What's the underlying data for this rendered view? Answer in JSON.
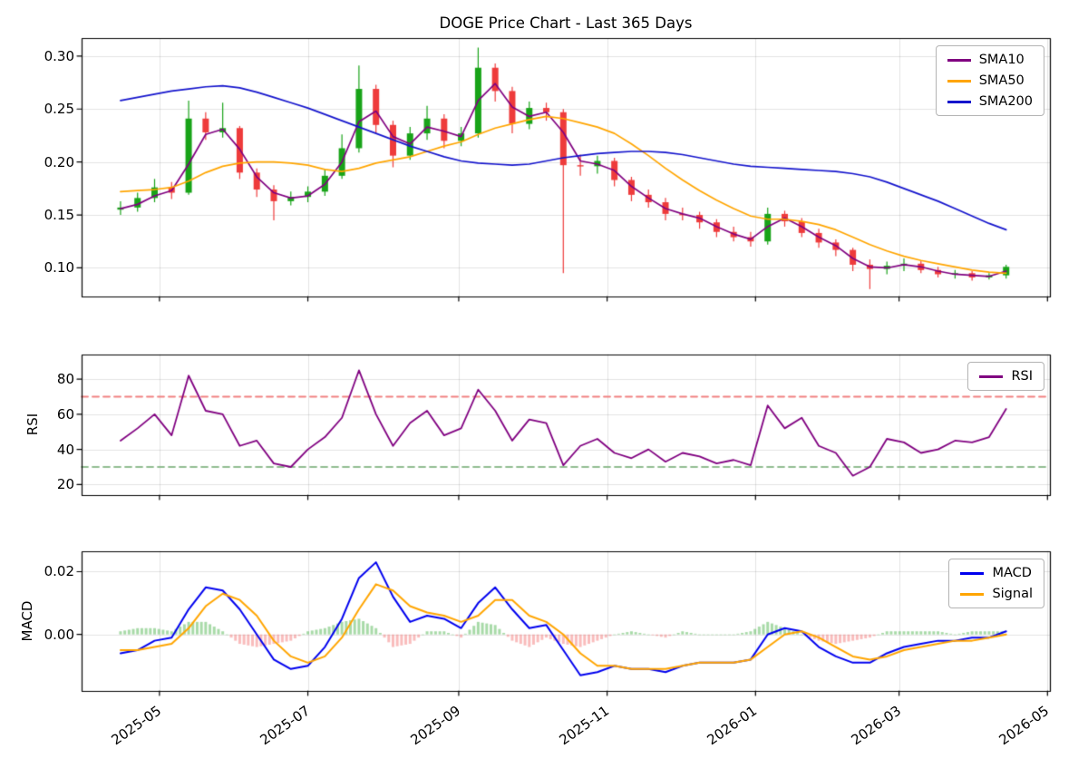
{
  "x_days": [
    0,
    7,
    14,
    21,
    28,
    35,
    42,
    49,
    56,
    63,
    70,
    77,
    84,
    91,
    98,
    105,
    112,
    119,
    126,
    133,
    140,
    147,
    154,
    161,
    168,
    175,
    182,
    189,
    196,
    203,
    210,
    217,
    224,
    231,
    238,
    245,
    252,
    259,
    266,
    273,
    280,
    287,
    294,
    301,
    308,
    315,
    322,
    329,
    336,
    343,
    350,
    357,
    364
  ],
  "x_axis": {
    "xlim": [
      -16,
      382
    ],
    "tick_values": [
      16,
      77,
      139,
      200,
      261,
      320,
      381
    ],
    "tick_labels": [
      "2025-05",
      "2025-07",
      "2025-09",
      "2025-11",
      "2026-01",
      "2026-03",
      "2026-05"
    ]
  },
  "chart_data": [
    {
      "type": "candlestick",
      "panel": "price",
      "title": "DOGE Price Chart - Last 365 Days",
      "ylim": [
        0.073,
        0.317
      ],
      "ytick_values": [
        0.1,
        0.15,
        0.2,
        0.25,
        0.3
      ],
      "ytick_labels": [
        "0.10",
        "0.15",
        "0.20",
        "0.25",
        "0.30"
      ],
      "colors": {
        "up": "#18a318",
        "down": "#ee3b3b"
      },
      "candles": [
        [
          0.155,
          0.163,
          0.15,
          0.157
        ],
        [
          0.157,
          0.171,
          0.153,
          0.166
        ],
        [
          0.166,
          0.184,
          0.162,
          0.176
        ],
        [
          0.176,
          0.181,
          0.165,
          0.171
        ],
        [
          0.171,
          0.258,
          0.169,
          0.241
        ],
        [
          0.241,
          0.247,
          0.221,
          0.228
        ],
        [
          0.228,
          0.256,
          0.223,
          0.232
        ],
        [
          0.232,
          0.234,
          0.184,
          0.19
        ],
        [
          0.19,
          0.194,
          0.167,
          0.174
        ],
        [
          0.174,
          0.178,
          0.145,
          0.163
        ],
        [
          0.163,
          0.172,
          0.159,
          0.167
        ],
        [
          0.167,
          0.177,
          0.162,
          0.172
        ],
        [
          0.172,
          0.193,
          0.168,
          0.187
        ],
        [
          0.187,
          0.226,
          0.184,
          0.213
        ],
        [
          0.213,
          0.291,
          0.209,
          0.269
        ],
        [
          0.269,
          0.273,
          0.227,
          0.235
        ],
        [
          0.235,
          0.239,
          0.195,
          0.206
        ],
        [
          0.206,
          0.233,
          0.202,
          0.227
        ],
        [
          0.227,
          0.253,
          0.221,
          0.241
        ],
        [
          0.241,
          0.245,
          0.213,
          0.22
        ],
        [
          0.22,
          0.233,
          0.215,
          0.227
        ],
        [
          0.227,
          0.308,
          0.223,
          0.289
        ],
        [
          0.289,
          0.293,
          0.257,
          0.267
        ],
        [
          0.267,
          0.271,
          0.227,
          0.236
        ],
        [
          0.236,
          0.257,
          0.231,
          0.251
        ],
        [
          0.251,
          0.256,
          0.239,
          0.247
        ],
        [
          0.247,
          0.25,
          0.095,
          0.197
        ],
        [
          0.197,
          0.207,
          0.187,
          0.196
        ],
        [
          0.196,
          0.206,
          0.189,
          0.201
        ],
        [
          0.201,
          0.204,
          0.177,
          0.183
        ],
        [
          0.183,
          0.186,
          0.163,
          0.169
        ],
        [
          0.169,
          0.174,
          0.157,
          0.162
        ],
        [
          0.162,
          0.166,
          0.145,
          0.151
        ],
        [
          0.151,
          0.157,
          0.145,
          0.15
        ],
        [
          0.15,
          0.153,
          0.137,
          0.143
        ],
        [
          0.143,
          0.146,
          0.129,
          0.134
        ],
        [
          0.134,
          0.139,
          0.125,
          0.129
        ],
        [
          0.129,
          0.134,
          0.12,
          0.125
        ],
        [
          0.125,
          0.157,
          0.122,
          0.151
        ],
        [
          0.151,
          0.154,
          0.139,
          0.144
        ],
        [
          0.144,
          0.147,
          0.129,
          0.133
        ],
        [
          0.133,
          0.137,
          0.119,
          0.124
        ],
        [
          0.124,
          0.127,
          0.111,
          0.117
        ],
        [
          0.117,
          0.119,
          0.097,
          0.103
        ],
        [
          0.103,
          0.108,
          0.08,
          0.099
        ],
        [
          0.099,
          0.106,
          0.094,
          0.102
        ],
        [
          0.102,
          0.109,
          0.097,
          0.104
        ],
        [
          0.104,
          0.107,
          0.095,
          0.098
        ],
        [
          0.098,
          0.101,
          0.091,
          0.094
        ],
        [
          0.094,
          0.098,
          0.09,
          0.095
        ],
        [
          0.095,
          0.097,
          0.088,
          0.091
        ],
        [
          0.091,
          0.095,
          0.089,
          0.093
        ],
        [
          0.093,
          0.103,
          0.09,
          0.101
        ]
      ],
      "series": [
        {
          "name": "SMA10",
          "color": "#800080",
          "values": [
            0.156,
            0.16,
            0.168,
            0.173,
            0.198,
            0.226,
            0.231,
            0.212,
            0.186,
            0.171,
            0.166,
            0.168,
            0.179,
            0.2,
            0.238,
            0.248,
            0.224,
            0.217,
            0.233,
            0.229,
            0.224,
            0.258,
            0.274,
            0.252,
            0.243,
            0.247,
            0.228,
            0.201,
            0.198,
            0.192,
            0.177,
            0.166,
            0.156,
            0.151,
            0.147,
            0.139,
            0.132,
            0.127,
            0.139,
            0.147,
            0.139,
            0.129,
            0.121,
            0.109,
            0.101,
            0.1,
            0.103,
            0.101,
            0.097,
            0.094,
            0.093,
            0.092,
            0.097
          ]
        },
        {
          "name": "SMA50",
          "color": "#ffa500",
          "values": [
            0.172,
            0.173,
            0.174,
            0.176,
            0.182,
            0.19,
            0.196,
            0.199,
            0.2,
            0.2,
            0.199,
            0.197,
            0.193,
            0.191,
            0.194,
            0.199,
            0.202,
            0.205,
            0.21,
            0.215,
            0.219,
            0.226,
            0.232,
            0.236,
            0.24,
            0.243,
            0.241,
            0.237,
            0.233,
            0.227,
            0.217,
            0.206,
            0.194,
            0.183,
            0.173,
            0.164,
            0.156,
            0.149,
            0.146,
            0.146,
            0.144,
            0.141,
            0.136,
            0.129,
            0.122,
            0.116,
            0.111,
            0.107,
            0.104,
            0.101,
            0.098,
            0.096,
            0.095
          ]
        },
        {
          "name": "SMA200",
          "color": "#1414cc",
          "values": [
            0.258,
            0.261,
            0.264,
            0.267,
            0.269,
            0.271,
            0.272,
            0.27,
            0.266,
            0.261,
            0.256,
            0.251,
            0.245,
            0.239,
            0.233,
            0.227,
            0.221,
            0.215,
            0.21,
            0.205,
            0.201,
            0.199,
            0.198,
            0.197,
            0.198,
            0.201,
            0.204,
            0.206,
            0.208,
            0.209,
            0.21,
            0.21,
            0.209,
            0.207,
            0.204,
            0.201,
            0.198,
            0.196,
            0.195,
            0.194,
            0.193,
            0.192,
            0.191,
            0.189,
            0.186,
            0.181,
            0.175,
            0.169,
            0.163,
            0.156,
            0.149,
            0.142,
            0.136
          ]
        }
      ]
    },
    {
      "type": "line",
      "panel": "rsi",
      "ylabel": "RSI",
      "ylim": [
        14,
        94
      ],
      "ytick_values": [
        20,
        40,
        60,
        80
      ],
      "ytick_labels": [
        "20",
        "40",
        "60",
        "80"
      ],
      "reference_lines": [
        {
          "name": "overbought",
          "value": 70,
          "color": "#f08080",
          "style": "dashed"
        },
        {
          "name": "oversold",
          "value": 30,
          "color": "#8fbc8f",
          "style": "dashed"
        }
      ],
      "series": [
        {
          "name": "RSI",
          "color": "#800080",
          "values": [
            45,
            52,
            60,
            48,
            82,
            62,
            60,
            42,
            45,
            32,
            30,
            40,
            47,
            58,
            85,
            60,
            42,
            55,
            62,
            48,
            52,
            74,
            62,
            45,
            57,
            55,
            31,
            42,
            46,
            38,
            35,
            40,
            33,
            38,
            36,
            32,
            34,
            31,
            65,
            52,
            58,
            42,
            38,
            25,
            30,
            46,
            44,
            38,
            40,
            45,
            44,
            47,
            63
          ]
        }
      ]
    },
    {
      "type": "line+histogram",
      "panel": "macd",
      "ylabel": "MACD",
      "ylim": [
        -0.018,
        0.0265
      ],
      "ytick_values": [
        0.0,
        0.02
      ],
      "ytick_labels": [
        "0.00",
        "0.02"
      ],
      "series": [
        {
          "name": "MACD",
          "color": "#0000ee",
          "values": [
            -0.006,
            -0.005,
            -0.002,
            -0.001,
            0.008,
            0.015,
            0.014,
            0.008,
            0.0,
            -0.008,
            -0.011,
            -0.01,
            -0.004,
            0.005,
            0.018,
            0.023,
            0.012,
            0.004,
            0.006,
            0.005,
            0.002,
            0.01,
            0.015,
            0.008,
            0.002,
            0.003,
            -0.005,
            -0.013,
            -0.012,
            -0.01,
            -0.011,
            -0.011,
            -0.012,
            -0.01,
            -0.009,
            -0.009,
            -0.009,
            -0.008,
            0.0,
            0.002,
            0.001,
            -0.004,
            -0.007,
            -0.009,
            -0.009,
            -0.006,
            -0.004,
            -0.003,
            -0.002,
            -0.002,
            -0.001,
            -0.001,
            0.001
          ]
        },
        {
          "name": "Signal",
          "color": "#ffa500",
          "values": [
            -0.005,
            -0.005,
            -0.004,
            -0.003,
            0.002,
            0.009,
            0.013,
            0.011,
            0.006,
            -0.002,
            -0.007,
            -0.009,
            -0.007,
            -0.001,
            0.008,
            0.016,
            0.014,
            0.009,
            0.007,
            0.006,
            0.004,
            0.006,
            0.011,
            0.011,
            0.006,
            0.004,
            0.0,
            -0.006,
            -0.01,
            -0.01,
            -0.011,
            -0.011,
            -0.011,
            -0.01,
            -0.009,
            -0.009,
            -0.009,
            -0.008,
            -0.004,
            0.0,
            0.001,
            -0.001,
            -0.004,
            -0.007,
            -0.008,
            -0.007,
            -0.005,
            -0.004,
            -0.003,
            -0.002,
            -0.002,
            -0.001,
            0.0
          ]
        }
      ],
      "histogram": {
        "pos_color": "#3fae3f",
        "neg_color": "#f26a6a",
        "values": [
          0.001,
          0.002,
          0.002,
          0.001,
          0.004,
          0.004,
          0.001,
          -0.003,
          -0.004,
          -0.003,
          -0.002,
          0.001,
          0.002,
          0.004,
          0.005,
          0.002,
          -0.004,
          -0.003,
          0.001,
          0.001,
          -0.001,
          0.004,
          0.003,
          -0.002,
          -0.004,
          -0.001,
          -0.003,
          -0.004,
          -0.002,
          0.0,
          0.001,
          0.0,
          -0.001,
          0.001,
          0.0,
          0.0,
          0.0,
          0.001,
          0.004,
          0.002,
          0.0,
          -0.002,
          -0.003,
          -0.002,
          -0.001,
          0.001,
          0.001,
          0.001,
          0.001,
          0.0,
          0.001,
          0.001,
          0.001
        ]
      }
    }
  ]
}
